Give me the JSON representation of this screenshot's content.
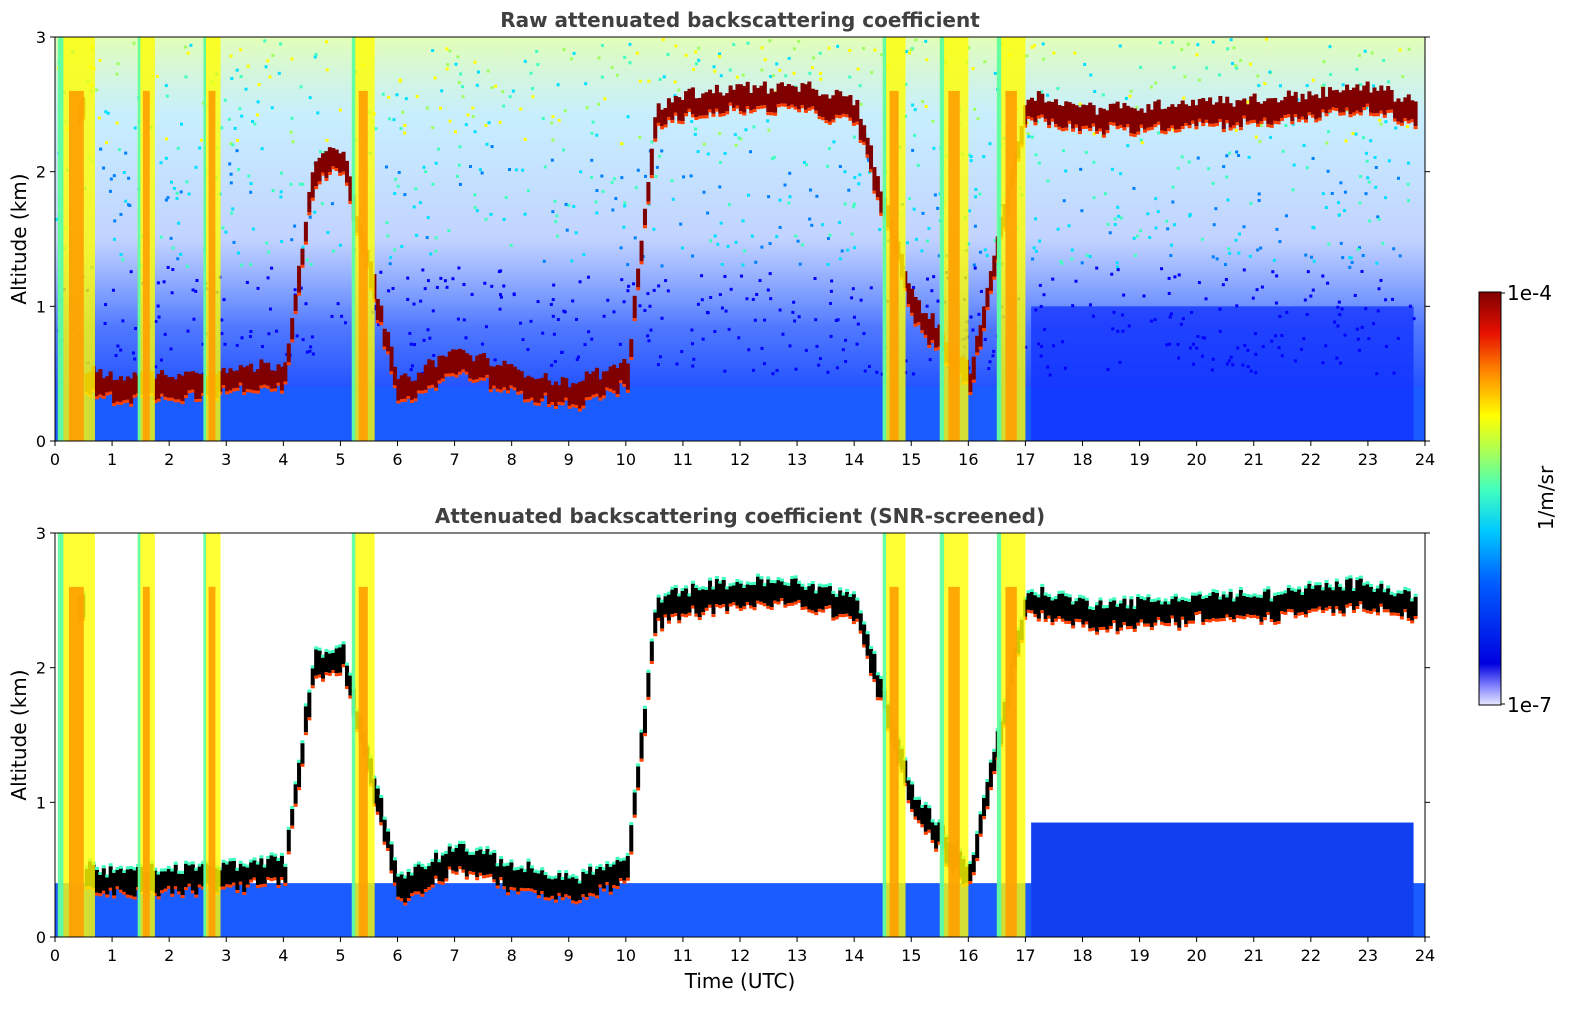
{
  "colormap": [
    "#00007f",
    "#0000ff",
    "#0080ff",
    "#00e0ff",
    "#40ffbf",
    "#a0ff60",
    "#ffff00",
    "#ffa000",
    "#ff4000",
    "#c00000",
    "#800000"
  ],
  "chart_data": [
    {
      "type": "heatmap",
      "title": "Raw attenuated backscattering coefficient",
      "xlabel": "",
      "ylabel": "Altitude (km)",
      "xlim": [
        0,
        24
      ],
      "ylim": [
        0,
        3
      ],
      "xticks": [
        "0",
        "1",
        "2",
        "3",
        "4",
        "5",
        "6",
        "7",
        "8",
        "9",
        "10",
        "11",
        "12",
        "13",
        "14",
        "15",
        "16",
        "17",
        "18",
        "19",
        "20",
        "21",
        "22",
        "23",
        "24"
      ],
      "yticks": [
        "0",
        "1",
        "2",
        "3"
      ],
      "cloud_layer_km": [
        [
          0.5,
          0.45
        ],
        [
          1,
          0.4
        ],
        [
          2,
          0.42
        ],
        [
          3,
          0.45
        ],
        [
          4,
          0.5
        ],
        [
          4.5,
          2.0
        ],
        [
          5,
          2.1
        ],
        [
          6,
          0.35
        ],
        [
          7,
          0.6
        ],
        [
          8,
          0.45
        ],
        [
          9,
          0.35
        ],
        [
          10,
          0.5
        ],
        [
          10.5,
          2.4
        ],
        [
          11,
          2.5
        ],
        [
          12,
          2.55
        ],
        [
          13,
          2.55
        ],
        [
          14,
          2.45
        ],
        [
          15,
          1.0
        ],
        [
          16,
          0.45
        ],
        [
          17,
          2.5
        ],
        [
          18,
          2.4
        ],
        [
          19,
          2.4
        ],
        [
          20,
          2.45
        ],
        [
          21,
          2.45
        ],
        [
          22,
          2.5
        ],
        [
          23,
          2.55
        ],
        [
          23.8,
          2.45
        ]
      ]
    },
    {
      "type": "heatmap",
      "title": "Attenuated backscattering coefficient (SNR-screened)",
      "xlabel": "Time (UTC)",
      "ylabel": "Altitude (km)",
      "xlim": [
        0,
        24
      ],
      "ylim": [
        0,
        3
      ],
      "xticks": [
        "0",
        "1",
        "2",
        "3",
        "4",
        "5",
        "6",
        "7",
        "8",
        "9",
        "10",
        "11",
        "12",
        "13",
        "14",
        "15",
        "16",
        "17",
        "18",
        "19",
        "20",
        "21",
        "22",
        "23",
        "24"
      ],
      "yticks": [
        "0",
        "1",
        "2",
        "3"
      ]
    }
  ],
  "colorbar": {
    "label": "1/m/sr",
    "max_label": "1e-4",
    "min_label": "1e-7"
  }
}
